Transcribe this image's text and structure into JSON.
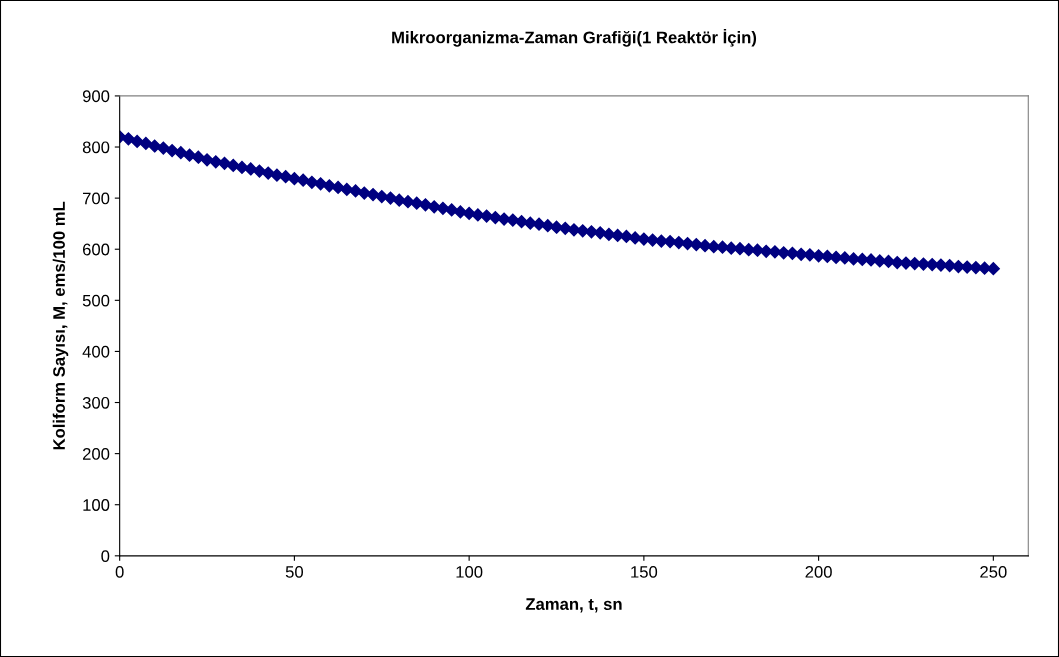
{
  "chart_data": {
    "type": "scatter",
    "title": "Mikroorganizma-Zaman Grafiği(1 Reaktör İçin)",
    "xlabel": "Zaman, t, sn",
    "ylabel": "Koliform Sayısı, M, ems/100 mL",
    "x": [
      0,
      2.5,
      5,
      7.5,
      10,
      12.5,
      15,
      17.5,
      20,
      22.5,
      25,
      27.5,
      30,
      32.5,
      35,
      37.5,
      40,
      42.5,
      45,
      47.5,
      50,
      52.5,
      55,
      57.5,
      60,
      62.5,
      65,
      67.5,
      70,
      72.5,
      75,
      77.5,
      80,
      82.5,
      85,
      87.5,
      90,
      92.5,
      95,
      97.5,
      100,
      102.5,
      105,
      107.5,
      110,
      112.5,
      115,
      117.5,
      120,
      122.5,
      125,
      127.5,
      130,
      132.5,
      135,
      137.5,
      140,
      142.5,
      145,
      147.5,
      150,
      152.5,
      155,
      157.5,
      160,
      162.5,
      165,
      167.5,
      170,
      172.5,
      175,
      177.5,
      180,
      182.5,
      185,
      187.5,
      190,
      192.5,
      195,
      197.5,
      200,
      202.5,
      205,
      207.5,
      210,
      212.5,
      215,
      217.5,
      220,
      222.5,
      225,
      227.5,
      230,
      232.5,
      235,
      237.5,
      240,
      242.5,
      245,
      247.5,
      250
    ],
    "series": [
      {
        "color": "#000080",
        "values": [
          820,
          816,
          811,
          807,
          802,
          798,
          793,
          789,
          784,
          780,
          775,
          771,
          768,
          764,
          760,
          757,
          753,
          749,
          745,
          742,
          738,
          735,
          731,
          728,
          724,
          721,
          717,
          714,
          710,
          707,
          703,
          700,
          696,
          693,
          690,
          687,
          683,
          680,
          677,
          673,
          670,
          667,
          665,
          662,
          659,
          657,
          654,
          651,
          649,
          646,
          643,
          641,
          638,
          636,
          634,
          632,
          629,
          627,
          625,
          622,
          620,
          618,
          616,
          615,
          613,
          611,
          609,
          607,
          605,
          604,
          602,
          601,
          599,
          598,
          596,
          595,
          593,
          592,
          590,
          589,
          587,
          586,
          584,
          583,
          581,
          580,
          579,
          577,
          576,
          574,
          573,
          572,
          571,
          570,
          569,
          568,
          566,
          565,
          564,
          563,
          562
        ]
      }
    ],
    "xlim": [
      0,
      260
    ],
    "xticks": [
      0,
      50,
      100,
      150,
      200,
      250
    ],
    "ylim": [
      0,
      900
    ],
    "yticks": [
      0,
      100,
      200,
      300,
      400,
      500,
      600,
      700,
      800,
      900
    ],
    "grid": false,
    "marker": "diamond"
  }
}
